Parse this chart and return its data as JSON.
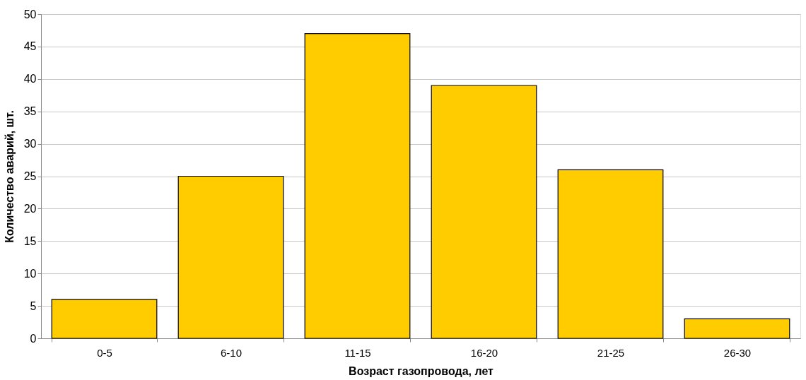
{
  "chart_data": {
    "type": "bar",
    "xlabel": "Возраст газопровода, лет",
    "ylabel": "Количество аварий, шт.",
    "categories": [
      "0-5",
      "6-10",
      "11-15",
      "16-20",
      "21-25",
      "26-30"
    ],
    "values": [
      6,
      25,
      47,
      39,
      26,
      3
    ],
    "color": "#ffcc00",
    "ylim": [
      0,
      50
    ],
    "yticks": [
      0,
      5,
      10,
      15,
      20,
      25,
      30,
      35,
      40,
      45,
      50
    ],
    "grid": "y"
  }
}
